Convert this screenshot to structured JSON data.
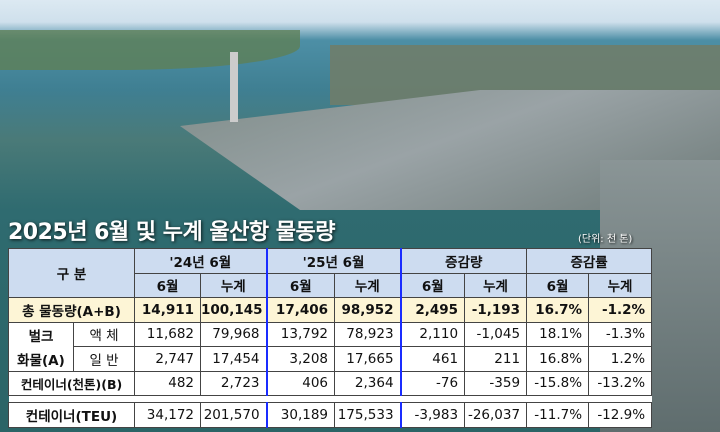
{
  "title": "2025년 6월 및 누계 울산항 물동량",
  "unit": "(단위: 천 톤)",
  "header": {
    "category": "구    분",
    "periods": [
      "'24년  6월",
      "'25년  6월",
      "증감량",
      "증감률"
    ],
    "sub": [
      "6월",
      "누계"
    ]
  },
  "rows": [
    {
      "label": "총  물동량(A+B)",
      "values": [
        "14,911",
        "100,145",
        "17,406",
        "98,952",
        "2,495",
        "-1,193",
        "16.7%",
        "-1.2%"
      ]
    },
    {
      "group": "벌크",
      "sublabel": "액 체",
      "values": [
        "11,682",
        "79,968",
        "13,792",
        "78,923",
        "2,110",
        "-1,045",
        "18.1%",
        "-1.3%"
      ]
    },
    {
      "group": "화물(A)",
      "sublabel": "일 반",
      "values": [
        "2,747",
        "17,454",
        "3,208",
        "17,665",
        "461",
        "211",
        "16.8%",
        "1.2%"
      ]
    },
    {
      "label": "컨테이너(천톤)(B)",
      "values": [
        "482",
        "2,723",
        "406",
        "2,364",
        "-76",
        "-359",
        "-15.8%",
        "-13.2%"
      ]
    },
    {
      "label": "컨테이너(TEU)",
      "values": [
        "34,172",
        "201,570",
        "30,189",
        "175,533",
        "-3,983",
        "-26,037",
        "-11.7%",
        "-12.9%"
      ]
    }
  ]
}
